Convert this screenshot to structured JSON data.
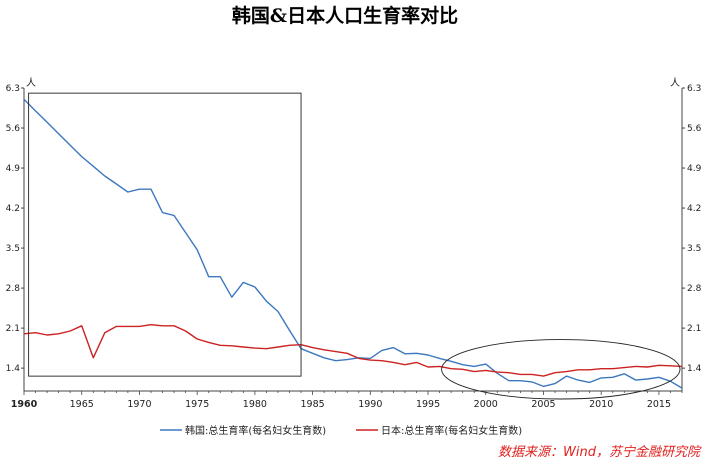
{
  "title": "韩国&日本人口生育率对比",
  "source": "数据来源：Wind，苏宁金融研究院",
  "colors": {
    "korea": "#3c78c0",
    "japan": "#cc2222",
    "axis": "#444444",
    "annotation": "#222222"
  },
  "chart_data": {
    "type": "line",
    "ylim": [
      1.0,
      6.3
    ],
    "xlim": [
      1960,
      2017
    ],
    "y_ticks": [
      "1.4",
      "2.1",
      "2.8",
      "3.5",
      "4.2",
      "4.9",
      "5.6",
      "6.3"
    ],
    "y_unit_left": "人",
    "y_unit_right": "人",
    "x_ticks": [
      "1960",
      "1965",
      "1970",
      "1975",
      "1980",
      "1985",
      "1990",
      "1995",
      "2000",
      "2005",
      "2010",
      "2015"
    ],
    "grid": false,
    "legend_position": "bottom",
    "series": [
      {
        "name": "韩国:总生育率(每名妇女生育数)",
        "color": "#3c78c0",
        "x": [
          1960,
          1961,
          1962,
          1963,
          1964,
          1965,
          1966,
          1967,
          1968,
          1969,
          1970,
          1971,
          1972,
          1973,
          1974,
          1975,
          1976,
          1977,
          1978,
          1979,
          1980,
          1981,
          1982,
          1983,
          1984,
          1985,
          1986,
          1987,
          1988,
          1989,
          1990,
          1991,
          1992,
          1993,
          1994,
          1995,
          1996,
          1997,
          1998,
          1999,
          2000,
          2001,
          2002,
          2003,
          2004,
          2005,
          2006,
          2007,
          2008,
          2009,
          2010,
          2011,
          2012,
          2013,
          2014,
          2015,
          2016,
          2017
        ],
        "values": [
          6.1,
          5.9,
          5.7,
          5.5,
          5.3,
          5.1,
          4.93,
          4.76,
          4.62,
          4.48,
          4.53,
          4.53,
          4.12,
          4.07,
          3.77,
          3.47,
          3.0,
          3.0,
          2.64,
          2.9,
          2.82,
          2.57,
          2.39,
          2.06,
          1.74,
          1.66,
          1.58,
          1.53,
          1.55,
          1.58,
          1.57,
          1.71,
          1.76,
          1.65,
          1.66,
          1.63,
          1.57,
          1.52,
          1.46,
          1.43,
          1.47,
          1.31,
          1.18,
          1.18,
          1.16,
          1.08,
          1.13,
          1.26,
          1.19,
          1.15,
          1.23,
          1.24,
          1.3,
          1.19,
          1.21,
          1.24,
          1.17,
          1.05
        ]
      },
      {
        "name": "日本:总生育率(每名妇女生育数)",
        "color": "#cc2222",
        "x": [
          1960,
          1961,
          1962,
          1963,
          1964,
          1965,
          1966,
          1967,
          1968,
          1969,
          1970,
          1971,
          1972,
          1973,
          1974,
          1975,
          1976,
          1977,
          1978,
          1979,
          1980,
          1981,
          1982,
          1983,
          1984,
          1985,
          1986,
          1987,
          1988,
          1989,
          1990,
          1991,
          1992,
          1993,
          1994,
          1995,
          1996,
          1997,
          1998,
          1999,
          2000,
          2001,
          2002,
          2003,
          2004,
          2005,
          2006,
          2007,
          2008,
          2009,
          2010,
          2011,
          2012,
          2013,
          2014,
          2015,
          2016,
          2017
        ],
        "values": [
          2.0,
          2.02,
          1.98,
          2.0,
          2.05,
          2.14,
          1.58,
          2.02,
          2.13,
          2.13,
          2.13,
          2.16,
          2.14,
          2.14,
          2.05,
          1.91,
          1.85,
          1.8,
          1.79,
          1.77,
          1.75,
          1.74,
          1.77,
          1.8,
          1.81,
          1.76,
          1.72,
          1.69,
          1.66,
          1.57,
          1.54,
          1.53,
          1.5,
          1.46,
          1.5,
          1.42,
          1.43,
          1.39,
          1.38,
          1.34,
          1.36,
          1.33,
          1.32,
          1.29,
          1.29,
          1.26,
          1.32,
          1.34,
          1.37,
          1.37,
          1.39,
          1.39,
          1.41,
          1.43,
          1.42,
          1.45,
          1.44,
          1.43
        ]
      }
    ]
  }
}
